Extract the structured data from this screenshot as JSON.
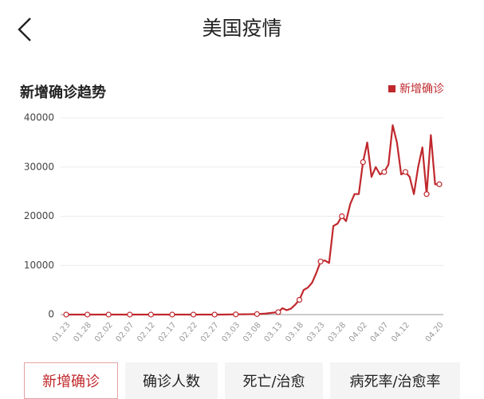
{
  "header": {
    "title": "美国疫情"
  },
  "chart_data": {
    "type": "line",
    "title": "新增确诊趋势",
    "categories": [
      "01.23",
      null,
      null,
      null,
      null,
      "01.28",
      null,
      null,
      null,
      null,
      "02.02",
      null,
      null,
      null,
      null,
      "02.07",
      null,
      null,
      null,
      null,
      "02.12",
      null,
      null,
      null,
      null,
      "02.17",
      null,
      null,
      null,
      null,
      "02.22",
      null,
      null,
      null,
      null,
      "02.27",
      null,
      null,
      null,
      null,
      "03.03",
      null,
      null,
      null,
      null,
      "03.08",
      null,
      null,
      null,
      null,
      "03.13",
      null,
      null,
      null,
      null,
      "03.18",
      null,
      null,
      null,
      null,
      "03.23",
      null,
      null,
      null,
      null,
      "03.28",
      null,
      null,
      null,
      null,
      "04.02",
      null,
      null,
      null,
      null,
      "04.07",
      null,
      null,
      null,
      null,
      "04.12",
      null,
      null,
      null,
      null,
      null,
      null,
      null,
      "04.20"
    ],
    "series": [
      {
        "name": "新增确诊",
        "color": "#c0282d",
        "values": [
          0,
          0,
          0,
          0,
          0,
          0,
          0,
          0,
          0,
          0,
          0,
          0,
          0,
          0,
          0,
          0,
          0,
          0,
          0,
          0,
          0,
          0,
          0,
          0,
          0,
          0,
          0,
          0,
          0,
          0,
          0,
          0,
          0,
          0,
          0,
          0,
          0,
          0,
          20,
          30,
          40,
          50,
          60,
          70,
          80,
          100,
          150,
          200,
          300,
          400,
          500,
          1300,
          900,
          1200,
          2000,
          3000,
          5000,
          5500,
          6500,
          8500,
          10800,
          11000,
          10500,
          18000,
          18500,
          20000,
          19000,
          22500,
          24500,
          24500,
          31000,
          35000,
          28000,
          30000,
          28500,
          29000,
          30500,
          38500,
          35000,
          28500,
          29000,
          28000,
          24500,
          30000,
          34000,
          24500,
          36500,
          26500,
          26500
        ]
      }
    ],
    "ylim": [
      0,
      40000
    ],
    "yticks": [
      0,
      10000,
      20000,
      30000,
      40000
    ],
    "grid": true,
    "legend": "top-right"
  },
  "tabs": [
    "新增确诊",
    "确诊人数",
    "死亡/治愈",
    "病死率/治愈率"
  ]
}
